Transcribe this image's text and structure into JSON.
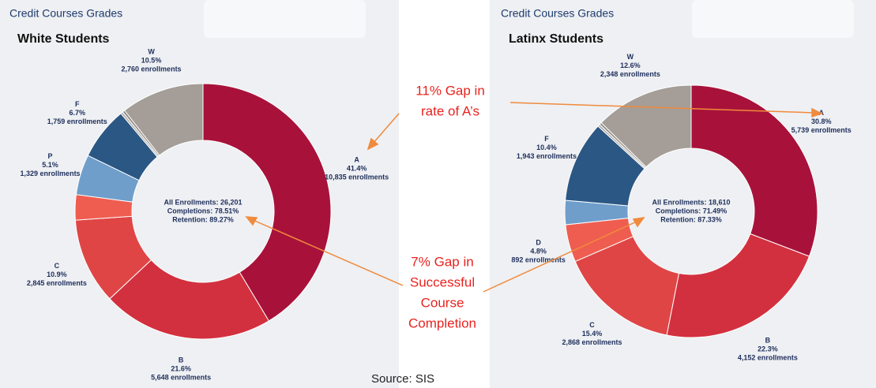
{
  "chart_data": [
    {
      "type": "donut",
      "title": "Credit Courses Grades",
      "subtitle": "White Students",
      "categories": [
        "A",
        "B",
        "C",
        null,
        "P",
        "F",
        null,
        null,
        "W"
      ],
      "values": [
        41.4,
        21.6,
        10.9,
        3.2,
        5.1,
        6.7,
        0.3,
        0.3,
        10.5
      ],
      "value_labels": [
        "41.4%",
        "21.6%",
        "10.9%",
        null,
        "5.1%",
        "6.7%",
        null,
        null,
        "10.5%"
      ],
      "enrollment_labels": [
        "10,835 enrollments",
        "5,648 enrollments",
        "2,845 enrollments",
        null,
        "1,329 enrollments",
        "1,759 enrollments",
        null,
        null,
        "2,760 enrollments"
      ],
      "colors": [
        "#a8123a",
        "#d3303f",
        "#e04545",
        "#ef5d50",
        "#6f9ecb",
        "#2b5784",
        "#b6b1ad",
        "#8e8984",
        "#a59d97"
      ],
      "center_text": [
        "All Enrollments: 26,201",
        "Completions: 78.51%",
        "Retention: 89.27%"
      ]
    },
    {
      "type": "donut",
      "title": "Credit Courses Grades",
      "subtitle": "Latinx Students",
      "categories": [
        "A",
        "B",
        "C",
        "D",
        null,
        "F",
        null,
        null,
        "W"
      ],
      "values": [
        30.8,
        22.3,
        15.4,
        4.8,
        3.1,
        10.4,
        0.3,
        0.3,
        12.6
      ],
      "value_labels": [
        "30.8%",
        "22.3%",
        "15.4%",
        "4.8%",
        null,
        "10.4%",
        null,
        null,
        "12.6%"
      ],
      "enrollment_labels": [
        "5,739 enrollments",
        "4,152 enrollments",
        "2,868 enrollments",
        "892 enrollments",
        null,
        "1,943 enrollments",
        null,
        null,
        "2,348 enrollments"
      ],
      "colors": [
        "#a8123a",
        "#d3303f",
        "#e04545",
        "#ef5d50",
        "#6f9ecb",
        "#2b5784",
        "#b6b1ad",
        "#8e8984",
        "#a59d97"
      ],
      "center_text": [
        "All Enrollments: 18,610",
        "Completions: 71.49%",
        "Retention: 87.33%"
      ]
    }
  ],
  "annotations": [
    [
      "11% Gap in",
      "rate of A’s"
    ],
    [
      "7% Gap in",
      "Successful",
      "Course",
      "Completion"
    ]
  ],
  "source": "Source:  SIS"
}
